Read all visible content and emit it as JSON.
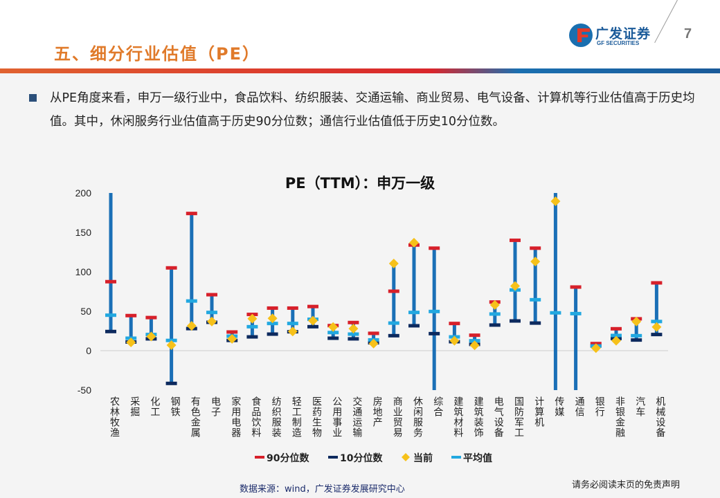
{
  "header": {
    "title": "五、细分行业估值（PE）",
    "page_number": "7",
    "logo_cn": "广发证券",
    "logo_en": "GF SECURITIES"
  },
  "body": {
    "paragraph": "从PE角度来看，申万一级行业中，食品饮料、纺织服装、交通运输、商业贸易、电气设备、计算机等行业估值高于历史均值。其中，休闲服务行业估值高于历史90分位数；通信行业估值低于历史10分位数。"
  },
  "colors": {
    "p90": "#d7202a",
    "p10": "#0d2a5e",
    "current": "#f6c11a",
    "mean": "#22a8e0",
    "range": "#1a6fb6"
  },
  "chart_data": {
    "type": "range",
    "title": "PE（TTM）：申万一级",
    "ylim": [
      -50,
      200
    ],
    "yticks": [
      "200",
      "150",
      "100",
      "50",
      "0",
      "-50"
    ],
    "ytick_values": [
      200,
      150,
      100,
      50,
      0,
      -50
    ],
    "legend": [
      "90分位数",
      "10分位数",
      "当前",
      "平均值"
    ],
    "legend_position": "bottom",
    "categories": [
      "农林牧渔",
      "采掘",
      "化工",
      "钢铁",
      "有色金属",
      "电子",
      "家用电器",
      "食品饮料",
      "纺织服装",
      "轻工制造",
      "医药生物",
      "公用事业",
      "交通运输",
      "房地产",
      "商业贸易",
      "休闲服务",
      "综合",
      "建筑材料",
      "建筑装饰",
      "电气设备",
      "国防军工",
      "计算机",
      "传媒",
      "通信",
      "银行",
      "非银金融",
      "汽车",
      "机械设备"
    ],
    "p90": [
      87.5,
      44.5,
      42,
      105,
      174,
      71,
      23.7,
      46,
      54,
      54,
      56,
      31.8,
      35.7,
      22,
      75.4,
      134,
      130,
      34.5,
      19.6,
      61.7,
      140,
      130,
      null,
      80.7,
      9,
      27.8,
      40.4,
      86
    ],
    "p10": [
      24.3,
      11,
      15,
      -41.5,
      28,
      36,
      13,
      17.5,
      21,
      24,
      30.4,
      15.8,
      15,
      10,
      19,
      31.6,
      21.6,
      11.4,
      8,
      32.5,
      37.7,
      35,
      null,
      null,
      6,
      15.5,
      13.5,
      20.5
    ],
    "current": [
      null,
      10.5,
      18,
      7,
      31.5,
      37,
      15,
      40.6,
      41,
      24.3,
      38,
      30,
      28,
      9,
      110.5,
      137,
      null,
      12.6,
      6.8,
      58,
      82,
      113,
      189.5,
      null,
      3.2,
      12.6,
      37,
      30
    ],
    "mean": [
      45,
      15.8,
      20.5,
      13,
      63,
      48.5,
      18.4,
      30.4,
      34.5,
      34.5,
      39.8,
      23,
      21,
      13.7,
      35,
      48.5,
      49.7,
      17.5,
      12.6,
      46.5,
      77,
      64.6,
      48,
      47,
      6,
      19.3,
      19,
      37
    ],
    "range_low": [
      24.3,
      11,
      15,
      -41.5,
      28,
      36,
      13,
      17.5,
      21,
      24,
      30.4,
      15.8,
      15,
      10,
      19,
      31.6,
      -50,
      11.4,
      8,
      32.5,
      37.7,
      35,
      -50,
      -50,
      6,
      15.5,
      13.5,
      20.5
    ],
    "range_high": [
      200,
      44.5,
      42,
      105,
      174,
      71,
      23.7,
      46,
      54,
      54,
      56,
      31.8,
      35.7,
      22,
      110.5,
      137,
      130,
      34.5,
      19.6,
      61.7,
      140,
      130,
      200,
      80.7,
      9,
      27.8,
      40.4,
      86
    ]
  },
  "footer": {
    "source": "数据来源：wind，广发证券发展研究中心",
    "disclaimer": "请务必阅读末页的免责声明"
  }
}
